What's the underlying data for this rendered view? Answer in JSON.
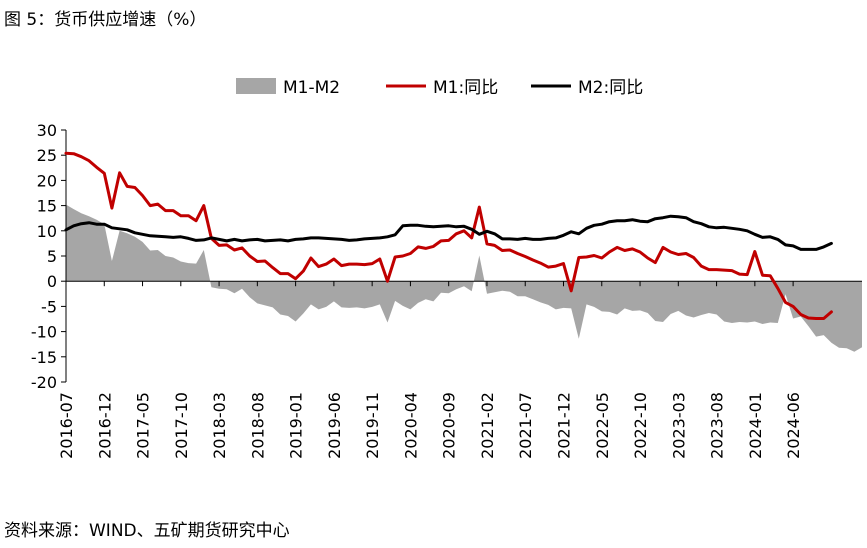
{
  "title": "图 5：货币供应增速（%）",
  "source": "资料来源：WIND、五矿期货研究中心",
  "colors": {
    "m1m2": "#a6a6a6",
    "m1": "#c00000",
    "m2": "#000000"
  },
  "chart_data": {
    "type": "line",
    "title": "图 5：货币供应增速（%）",
    "xlabel": "",
    "ylabel": "",
    "ylim": [
      -20,
      30
    ],
    "yticks": [
      30,
      25,
      20,
      15,
      10,
      5,
      0,
      -5,
      -10,
      -15,
      -20
    ],
    "grid": false,
    "legend_position": "top",
    "x_labels": [
      "2016-07",
      "2016-12",
      "2017-05",
      "2017-10",
      "2018-03",
      "2018-08",
      "2019-01",
      "2019-06",
      "2019-11",
      "2020-04",
      "2020-09",
      "2021-02",
      "2021-07",
      "2021-12",
      "2022-05",
      "2022-10",
      "2023-03",
      "2023-08",
      "2024-01",
      "2024-06"
    ],
    "series": [
      {
        "name": "M1-M2",
        "kind": "area",
        "color": "#a6a6a6",
        "values": [
          15.2,
          14.3,
          13.5,
          12.9,
          12.2,
          11.3,
          4.0,
          10.0,
          9.5,
          8.8,
          7.8,
          6.1,
          6.2,
          5.0,
          4.7,
          3.9,
          3.6,
          3.5,
          6.2,
          -1.2,
          -1.5,
          -1.6,
          -2.4,
          -1.5,
          -3.2,
          -4.4,
          -4.8,
          -5.2,
          -6.6,
          -6.9,
          -8.0,
          -6.4,
          -4.6,
          -5.6,
          -5.1,
          -4.0,
          -5.2,
          -5.3,
          -5.2,
          -5.4,
          -5.1,
          -4.6,
          -8.2,
          -3.9,
          -4.9,
          -5.6,
          -4.3,
          -3.6,
          -4.0,
          -2.3,
          -2.4,
          -1.6,
          -1.0,
          -2.0,
          5.1,
          -2.5,
          -2.2,
          -1.9,
          -2.1,
          -3.0,
          -3.0,
          -3.6,
          -4.2,
          -4.7,
          -5.6,
          -5.3,
          -5.4,
          -11.4,
          -4.6,
          -5.1,
          -6.0,
          -6.1,
          -6.6,
          -5.4,
          -5.9,
          -5.8,
          -6.3,
          -7.9,
          -8.1,
          -6.5,
          -5.9,
          -6.8,
          -7.2,
          -6.7,
          -6.3,
          -6.6,
          -8.0,
          -8.3,
          -8.1,
          -8.2,
          -8.0,
          -8.5,
          -8.2,
          -8.3,
          -2.6,
          -7.4,
          -7.0,
          -8.9,
          -11.0,
          -10.7,
          -12.2,
          -13.2,
          -13.3,
          -14.0,
          -13.1
        ]
      },
      {
        "name": "M1:同比",
        "kind": "line",
        "color": "#c00000",
        "values": [
          25.4,
          25.3,
          24.7,
          23.9,
          22.6,
          21.4,
          14.5,
          21.5,
          18.8,
          18.6,
          17.0,
          15.0,
          15.3,
          14.0,
          14.0,
          13.0,
          13.0,
          12.0,
          15.0,
          8.5,
          7.1,
          7.2,
          6.2,
          6.6,
          5.0,
          3.9,
          4.0,
          2.7,
          1.5,
          1.5,
          0.5,
          2.0,
          4.6,
          2.9,
          3.4,
          4.4,
          3.1,
          3.4,
          3.4,
          3.3,
          3.5,
          4.4,
          0.0,
          4.8,
          5.0,
          5.5,
          6.8,
          6.5,
          6.9,
          8.0,
          8.1,
          9.4,
          10.0,
          8.6,
          14.7,
          7.4,
          7.1,
          6.1,
          6.2,
          5.5,
          4.9,
          4.2,
          3.6,
          2.8,
          3.0,
          3.5,
          -1.9,
          4.7,
          4.8,
          5.1,
          4.6,
          5.8,
          6.7,
          6.1,
          6.4,
          5.8,
          4.6,
          3.7,
          6.7,
          5.8,
          5.3,
          5.5,
          4.7,
          3.0,
          2.3,
          2.3,
          2.2,
          2.1,
          1.4,
          1.3,
          5.9,
          1.2,
          1.1,
          -1.4,
          -4.2,
          -5.0,
          -6.6,
          -7.3,
          -7.4,
          -7.4,
          -6.1
        ]
      },
      {
        "name": "M2:同比",
        "kind": "line",
        "color": "#000000",
        "values": [
          10.2,
          11.0,
          11.4,
          11.6,
          11.3,
          11.3,
          10.6,
          10.4,
          10.2,
          9.6,
          9.3,
          9.0,
          8.9,
          8.8,
          8.7,
          8.8,
          8.5,
          8.1,
          8.2,
          8.6,
          8.3,
          8.0,
          8.3,
          8.0,
          8.2,
          8.3,
          8.0,
          8.1,
          8.2,
          8.0,
          8.3,
          8.4,
          8.6,
          8.6,
          8.5,
          8.4,
          8.3,
          8.1,
          8.2,
          8.4,
          8.5,
          8.6,
          8.8,
          9.2,
          11.0,
          11.1,
          11.1,
          10.9,
          10.8,
          10.9,
          11.0,
          10.8,
          10.9,
          10.3,
          9.3,
          9.9,
          9.4,
          8.4,
          8.4,
          8.3,
          8.5,
          8.3,
          8.3,
          8.5,
          8.6,
          9.1,
          9.8,
          9.4,
          10.5,
          11.1,
          11.3,
          11.8,
          12.0,
          12.0,
          12.2,
          11.9,
          11.8,
          12.4,
          12.6,
          12.9,
          12.8,
          12.6,
          11.8,
          11.4,
          10.8,
          10.6,
          10.7,
          10.5,
          10.3,
          10.0,
          9.3,
          8.7,
          8.8,
          8.3,
          7.2,
          7.0,
          6.3,
          6.3,
          6.3,
          6.8,
          7.5
        ]
      }
    ]
  }
}
